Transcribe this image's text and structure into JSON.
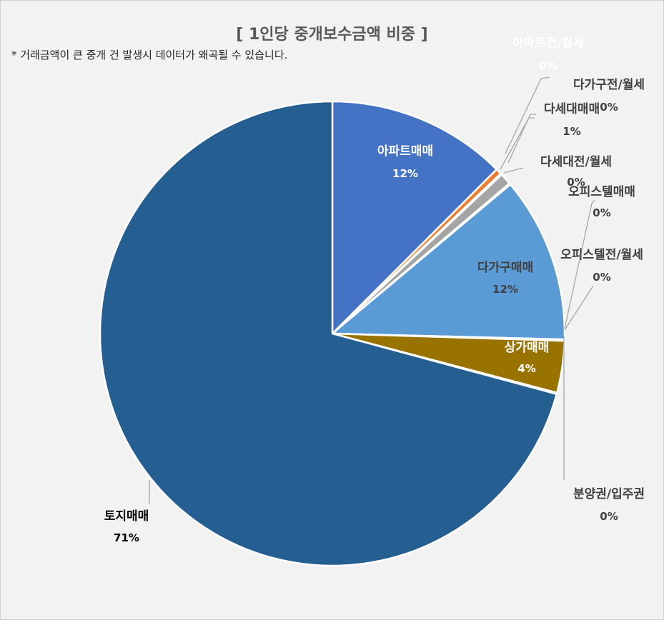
{
  "title": "[ 1인당 중개보수금액 비중 ]",
  "subtitle": "* 거래금액이 큰 중개 건 발생시 데이터가 왜곡될 수 있습니다.",
  "chart_data": {
    "type": "pie",
    "title": "[ 1인당 중개보수금액 비중 ]",
    "start_angle_deg": 0,
    "direction": "clockwise",
    "slices": [
      {
        "name": "아파트매매",
        "value": 12.5,
        "pct_label": "12%",
        "color": "#4472c4"
      },
      {
        "name": "아파트전/월세",
        "value": 0.4,
        "pct_label": "0%",
        "color": "#ed7d31"
      },
      {
        "name": "다가구전/월세",
        "value": 0.1,
        "pct_label": "0%",
        "color": "#ffc000"
      },
      {
        "name": "다세대매매",
        "value": 0.8,
        "pct_label": "1%",
        "color": "#a5a5a5"
      },
      {
        "name": "다세대전/월세",
        "value": 0.1,
        "pct_label": "0%",
        "color": "#2e75b6"
      },
      {
        "name": "다가구매매",
        "value": 11.5,
        "pct_label": "12%",
        "color": "#5b9bd5"
      },
      {
        "name": "오피스텔매매",
        "value": 0.05,
        "pct_label": "0%",
        "color": "#70ad47"
      },
      {
        "name": "오피스텔전/월세",
        "value": 0.05,
        "pct_label": "0%",
        "color": "#264478"
      },
      {
        "name": "상가매매",
        "value": 3.6,
        "pct_label": "4%",
        "color": "#997300"
      },
      {
        "name": "분양권/입주권",
        "value": 0.1,
        "pct_label": "0%",
        "color": "#7f7f7f"
      },
      {
        "name": "토지매매",
        "value": 70.8,
        "pct_label": "71%",
        "color": "#255e91"
      }
    ]
  }
}
